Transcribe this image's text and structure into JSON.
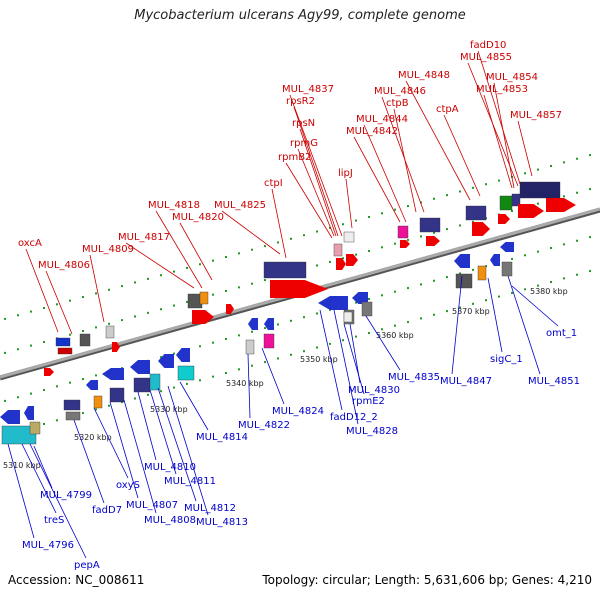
{
  "title": "Mycobacterium ulcerans Agy99, complete genome",
  "footer": {
    "accession": "Accession: NC_008611",
    "topology": "Topology: circular; Length: 5,631,606 bp; Genes: 4,210"
  },
  "colors": {
    "forward_label": "#cc0000",
    "reverse_label": "#0000cc",
    "backbone": "#888888",
    "tick_dot": "#229922"
  },
  "scale_ticks": [
    "5310 kbp",
    "5320 kbp",
    "5330 kbp",
    "5340 kbp",
    "5350 kbp",
    "5360 kbp",
    "5370 kbp",
    "5380 kbp"
  ],
  "forward_labels": [
    "oxcA",
    "MUL_4806",
    "MUL_4809",
    "MUL_4817",
    "MUL_4818",
    "MUL_4820",
    "MUL_4825",
    "ctpI",
    "rpmB2",
    "rpmG",
    "rpsN",
    "rpsR2",
    "MUL_4837",
    "lipJ",
    "MUL_4842",
    "MUL_4844",
    "ctpB",
    "MUL_4846",
    "MUL_4848",
    "ctpA",
    "MUL_4853",
    "MUL_4854",
    "MUL_4855",
    "fadD10",
    "MUL_4857"
  ],
  "reverse_labels": [
    "MUL_4796",
    "pepA",
    "treS",
    "MUL_4799",
    "fadD7",
    "oxyS",
    "MUL_4807",
    "MUL_4808",
    "MUL_4810",
    "MUL_4811",
    "MUL_4812",
    "MUL_4813",
    "MUL_4814",
    "MUL_4822",
    "MUL_4824",
    "fadD12_2",
    "MUL_4828",
    "rpmE2",
    "MUL_4830",
    "MUL_4835",
    "MUL_4847",
    "sigC_1",
    "MUL_4851",
    "omt_1"
  ]
}
